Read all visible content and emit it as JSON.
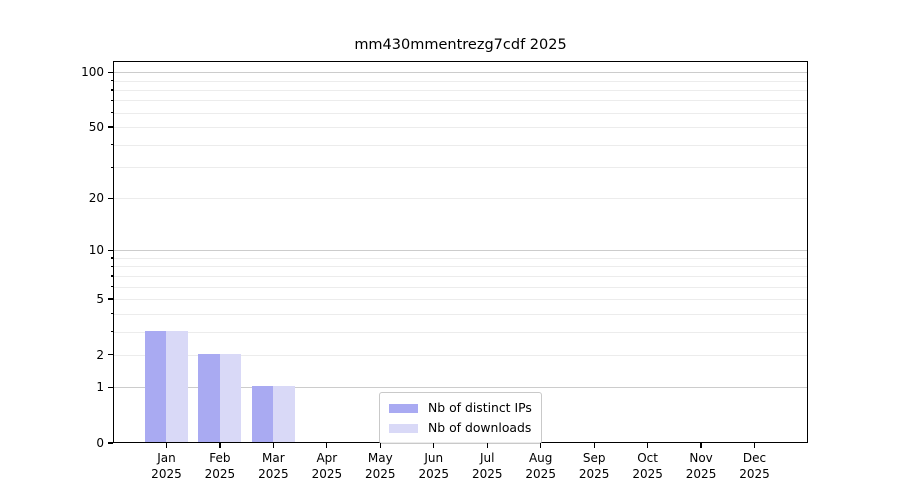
{
  "figure": {
    "background": "#ffffff"
  },
  "chart_data": {
    "type": "bar",
    "title": "mm430mmentrezg7cdf 2025",
    "x": {
      "months": [
        "Jan",
        "Feb",
        "Mar",
        "Apr",
        "May",
        "Jun",
        "Jul",
        "Aug",
        "Sep",
        "Oct",
        "Nov",
        "Dec"
      ],
      "year": "2025"
    },
    "series": [
      {
        "name": "Nb of distinct IPs",
        "color": "#a9aaf2",
        "values": [
          3,
          2,
          1,
          0,
          0,
          0,
          0,
          0,
          0,
          0,
          0,
          0
        ]
      },
      {
        "name": "Nb of downloads",
        "color": "#d9d9f7",
        "values": [
          3,
          2,
          1,
          0,
          0,
          0,
          0,
          0,
          0,
          0,
          0,
          0
        ]
      }
    ],
    "yaxis": {
      "scale": "log1p",
      "tick_labels": [
        0,
        1,
        2,
        5,
        10,
        20,
        50,
        100
      ],
      "max": 115,
      "major_gridlines": [
        1,
        10,
        100
      ],
      "minor_gridlines": [
        2,
        3,
        4,
        5,
        6,
        7,
        8,
        9,
        20,
        30,
        40,
        50,
        60,
        70,
        80,
        90
      ],
      "minor_tick_values": [
        3,
        4,
        6,
        7,
        8,
        9,
        30,
        40,
        60,
        70,
        80,
        90
      ]
    },
    "legend": {
      "position": "lower-center"
    },
    "colors": {
      "axis": "#000000",
      "grid_major": "#cccccc",
      "grid_minor": "#ececec",
      "text": "#000000"
    }
  }
}
